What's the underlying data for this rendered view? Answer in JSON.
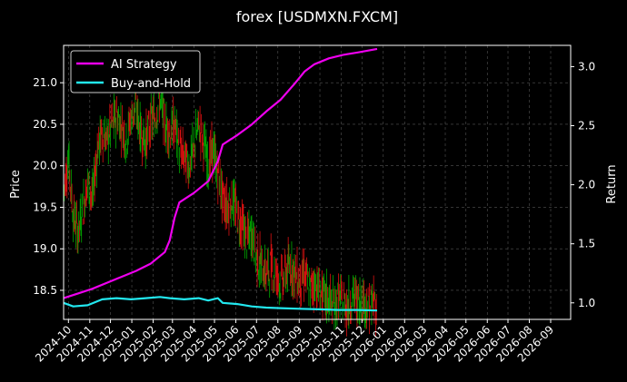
{
  "chart_data": {
    "type": "line",
    "title": "forex [USDMXN.FXCM]",
    "ylabel_left": "Price",
    "ylabel_right": "Return",
    "grid": true,
    "legend_position": "top-left",
    "x_start": "2024-09-24",
    "x_end": "2026-09-30",
    "x_ticks": [
      "2024-10",
      "2024-11",
      "2024-12",
      "2025-01",
      "2025-02",
      "2025-03",
      "2025-04",
      "2025-05",
      "2025-06",
      "2025-07",
      "2025-08",
      "2025-09",
      "2025-10",
      "2025-11",
      "2025-12",
      "2026-01",
      "2026-02",
      "2026-03",
      "2026-04",
      "2026-05",
      "2026-06",
      "2026-07",
      "2026-08",
      "2026-09"
    ],
    "ylim_left": [
      18.15,
      21.45
    ],
    "yticks_left": [
      "18.5",
      "19.0",
      "19.5",
      "20.0",
      "20.5",
      "21.0"
    ],
    "ylim_right": [
      0.86,
      3.18
    ],
    "yticks_right": [
      "1.0",
      "1.5",
      "2.0",
      "2.5",
      "3.0"
    ],
    "colors": {
      "up": "#00aa00",
      "down": "#dd1111",
      "ai": "#ee00ee",
      "bh": "#22e8f0",
      "grid": "#555555"
    },
    "price_series": {
      "name": "USDMXN",
      "points": [
        [
          "2024-09-24",
          19.7
        ],
        [
          "2024-10-01",
          20.1
        ],
        [
          "2024-10-08",
          19.4
        ],
        [
          "2024-10-15",
          19.2
        ],
        [
          "2024-10-22",
          19.5
        ],
        [
          "2024-10-29",
          19.8
        ],
        [
          "2024-11-05",
          19.6
        ],
        [
          "2024-11-12",
          20.2
        ],
        [
          "2024-11-19",
          20.4
        ],
        [
          "2024-11-26",
          20.3
        ],
        [
          "2024-12-03",
          20.5
        ],
        [
          "2024-12-10",
          20.6
        ],
        [
          "2024-12-17",
          20.5
        ],
        [
          "2024-12-24",
          20.3
        ],
        [
          "2024-12-31",
          20.6
        ],
        [
          "2025-01-07",
          20.7
        ],
        [
          "2025-01-14",
          20.4
        ],
        [
          "2025-01-21",
          20.3
        ],
        [
          "2025-01-28",
          20.5
        ],
        [
          "2025-02-04",
          20.6
        ],
        [
          "2025-02-11",
          20.8
        ],
        [
          "2025-02-18",
          20.5
        ],
        [
          "2025-02-25",
          20.4
        ],
        [
          "2025-03-04",
          20.5
        ],
        [
          "2025-03-11",
          20.2
        ],
        [
          "2025-03-18",
          20.1
        ],
        [
          "2025-03-25",
          20.0
        ],
        [
          "2025-04-01",
          20.2
        ],
        [
          "2025-04-08",
          20.5
        ],
        [
          "2025-04-15",
          20.3
        ],
        [
          "2025-04-22",
          20.0
        ],
        [
          "2025-04-29",
          20.2
        ],
        [
          "2025-05-06",
          19.9
        ],
        [
          "2025-05-13",
          19.6
        ],
        [
          "2025-05-20",
          19.5
        ],
        [
          "2025-05-27",
          19.6
        ],
        [
          "2025-06-03",
          19.4
        ],
        [
          "2025-06-10",
          19.3
        ],
        [
          "2025-06-17",
          19.1
        ],
        [
          "2025-06-24",
          19.2
        ],
        [
          "2025-07-01",
          18.9
        ],
        [
          "2025-07-08",
          18.8
        ],
        [
          "2025-07-15",
          18.7
        ],
        [
          "2025-07-22",
          18.8
        ],
        [
          "2025-07-29",
          18.7
        ],
        [
          "2025-08-05",
          18.6
        ],
        [
          "2025-08-12",
          18.7
        ],
        [
          "2025-08-19",
          18.8
        ],
        [
          "2025-08-26",
          18.7
        ],
        [
          "2025-09-02",
          18.6
        ],
        [
          "2025-09-09",
          18.7
        ],
        [
          "2025-09-16",
          18.5
        ],
        [
          "2025-09-23",
          18.6
        ],
        [
          "2025-09-30",
          18.5
        ],
        [
          "2025-10-07",
          18.4
        ],
        [
          "2025-10-14",
          18.4
        ],
        [
          "2025-10-21",
          18.3
        ],
        [
          "2025-10-28",
          18.4
        ],
        [
          "2025-11-04",
          18.35
        ],
        [
          "2025-11-11",
          18.3
        ],
        [
          "2025-11-18",
          18.45
        ],
        [
          "2025-11-25",
          18.35
        ],
        [
          "2025-12-02",
          18.4
        ],
        [
          "2025-12-09",
          18.3
        ],
        [
          "2025-12-16",
          18.35
        ],
        [
          "2025-12-23",
          18.3
        ]
      ]
    },
    "series": [
      {
        "name": "AI Strategy",
        "axis": "right",
        "points": [
          [
            "2024-09-24",
            1.04
          ],
          [
            "2024-10-15",
            1.08
          ],
          [
            "2024-11-05",
            1.12
          ],
          [
            "2024-11-26",
            1.17
          ],
          [
            "2024-12-17",
            1.22
          ],
          [
            "2025-01-07",
            1.27
          ],
          [
            "2025-01-28",
            1.33
          ],
          [
            "2025-02-18",
            1.43
          ],
          [
            "2025-02-25",
            1.53
          ],
          [
            "2025-03-04",
            1.72
          ],
          [
            "2025-03-11",
            1.85
          ],
          [
            "2025-04-01",
            1.93
          ],
          [
            "2025-04-22",
            2.03
          ],
          [
            "2025-05-06",
            2.2
          ],
          [
            "2025-05-13",
            2.34
          ],
          [
            "2025-06-03",
            2.42
          ],
          [
            "2025-06-24",
            2.51
          ],
          [
            "2025-07-15",
            2.62
          ],
          [
            "2025-08-05",
            2.72
          ],
          [
            "2025-08-26",
            2.86
          ],
          [
            "2025-09-09",
            2.96
          ],
          [
            "2025-09-23",
            3.02
          ],
          [
            "2025-10-14",
            3.07
          ],
          [
            "2025-11-04",
            3.1
          ],
          [
            "2025-11-25",
            3.12
          ],
          [
            "2025-12-23",
            3.15
          ]
        ]
      },
      {
        "name": "Buy-and-Hold",
        "axis": "right",
        "points": [
          [
            "2024-09-24",
            1.0
          ],
          [
            "2024-10-08",
            0.97
          ],
          [
            "2024-10-29",
            0.98
          ],
          [
            "2024-11-19",
            1.03
          ],
          [
            "2024-12-10",
            1.04
          ],
          [
            "2024-12-31",
            1.03
          ],
          [
            "2025-01-21",
            1.04
          ],
          [
            "2025-02-11",
            1.05
          ],
          [
            "2025-02-25",
            1.04
          ],
          [
            "2025-03-18",
            1.03
          ],
          [
            "2025-04-08",
            1.04
          ],
          [
            "2025-04-22",
            1.02
          ],
          [
            "2025-05-06",
            1.04
          ],
          [
            "2025-05-13",
            1.0
          ],
          [
            "2025-06-03",
            0.99
          ],
          [
            "2025-06-24",
            0.97
          ],
          [
            "2025-07-15",
            0.96
          ],
          [
            "2025-08-05",
            0.955
          ],
          [
            "2025-09-02",
            0.95
          ],
          [
            "2025-09-30",
            0.945
          ],
          [
            "2025-10-28",
            0.94
          ],
          [
            "2025-11-25",
            0.94
          ],
          [
            "2025-12-23",
            0.935
          ]
        ]
      }
    ]
  }
}
